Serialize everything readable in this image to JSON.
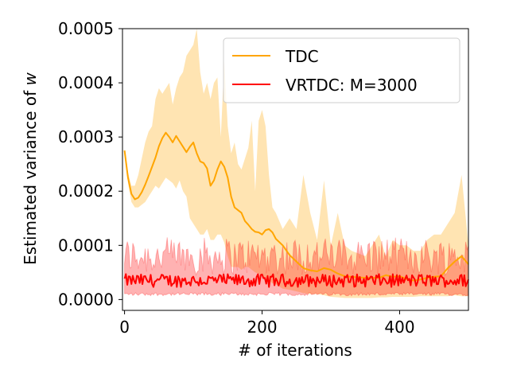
{
  "chart_data": {
    "type": "line",
    "title": "",
    "xlabel": "# of iterations",
    "ylabel": "Estimated variance of w",
    "ylabel_main": "Estimated variance of ",
    "ylabel_var": "w",
    "xlim": [
      -3,
      500
    ],
    "ylim": [
      -2e-05,
      0.0005
    ],
    "xticks": [
      0,
      200,
      400
    ],
    "xtick_labels": [
      "0",
      "200",
      "400"
    ],
    "yticks": [
      0.0,
      0.0001,
      0.0002,
      0.0003,
      0.0004,
      0.0005
    ],
    "ytick_labels": [
      "0.0000",
      "0.0001",
      "0.0002",
      "0.0003",
      "0.0004",
      "0.0005"
    ],
    "legend_position": "top-right",
    "series": [
      {
        "name": "TDC",
        "color": "#ffa500",
        "band_color": "#ffa500",
        "x": [
          0,
          5,
          10,
          15,
          20,
          25,
          30,
          35,
          40,
          45,
          50,
          55,
          60,
          65,
          70,
          75,
          80,
          85,
          90,
          95,
          100,
          105,
          110,
          115,
          120,
          125,
          130,
          135,
          140,
          145,
          150,
          155,
          160,
          165,
          170,
          175,
          180,
          185,
          190,
          195,
          200,
          205,
          210,
          215,
          220,
          230,
          240,
          250,
          260,
          270,
          280,
          290,
          300,
          310,
          320,
          330,
          340,
          350,
          360,
          370,
          380,
          390,
          400,
          410,
          420,
          430,
          440,
          450,
          460,
          470,
          480,
          490,
          500
        ],
        "mean": [
          0.000275,
          0.000225,
          0.000195,
          0.000185,
          0.000188,
          0.000198,
          0.000212,
          0.000228,
          0.000245,
          0.000262,
          0.000283,
          0.000298,
          0.000308,
          0.0003,
          0.00029,
          0.000302,
          0.000292,
          0.000282,
          0.000272,
          0.000282,
          0.00029,
          0.00027,
          0.000255,
          0.000252,
          0.000242,
          0.00021,
          0.00022,
          0.00024,
          0.000255,
          0.000245,
          0.000225,
          0.00019,
          0.00017,
          0.000165,
          0.00016,
          0.000145,
          0.000138,
          0.00013,
          0.000125,
          0.000124,
          0.00012,
          0.000128,
          0.00013,
          0.000124,
          0.000112,
          0.0001,
          8.2e-05,
          7e-05,
          5.8e-05,
          5.4e-05,
          5.2e-05,
          5.8e-05,
          5.5e-05,
          4.8e-05,
          4.3e-05,
          4.2e-05,
          4.1e-05,
          4e-05,
          4e-05,
          4e-05,
          4.5e-05,
          4.2e-05,
          4.3e-05,
          3.8e-05,
          3.5e-05,
          3.7e-05,
          4e-05,
          4.2e-05,
          4.3e-05,
          5.8e-05,
          7e-05,
          8e-05,
          6.5e-05
        ],
        "upper": [
          0.000275,
          0.000235,
          0.00021,
          0.00021,
          0.00023,
          0.00026,
          0.00029,
          0.00031,
          0.00032,
          0.00037,
          0.00039,
          0.00038,
          0.00039,
          0.0004,
          0.00036,
          0.00039,
          0.00041,
          0.00042,
          0.00045,
          0.00046,
          0.00047,
          0.0005,
          0.00042,
          0.00038,
          0.0004,
          0.00037,
          0.0004,
          0.00041,
          0.0003,
          0.00044,
          0.00032,
          0.00027,
          0.00029,
          0.00025,
          0.00024,
          0.00026,
          0.00028,
          0.00033,
          0.0002,
          0.00033,
          0.00035,
          0.00032,
          0.00023,
          0.00017,
          0.00016,
          0.00013,
          0.00015,
          0.00013,
          0.00023,
          0.00016,
          0.00011,
          0.00022,
          0.0001,
          0.00016,
          0.0001,
          9e-05,
          8.5e-05,
          8e-05,
          0.0001,
          0.00012,
          8e-05,
          0.00011,
          0.0001,
          0.0001,
          9e-05,
          9e-05,
          0.00011,
          0.00012,
          0.00012,
          0.00014,
          0.00016,
          0.00023,
          0.0001
        ],
        "lower": [
          0.000275,
          0.000215,
          0.00018,
          0.00017,
          0.00017,
          0.000175,
          0.00018,
          0.00019,
          0.0002,
          0.00021,
          0.000205,
          0.000215,
          0.000225,
          0.00022,
          0.000215,
          0.000205,
          0.00022,
          0.0002,
          0.00019,
          0.00015,
          0.00014,
          0.00013,
          0.00012,
          0.00012,
          0.00013,
          0.00011,
          0.00011,
          0.00012,
          0.00012,
          0.000105,
          8e-05,
          6e-05,
          6e-05,
          6e-05,
          5.5e-05,
          6e-05,
          6e-05,
          5.5e-05,
          5e-05,
          4.8e-05,
          4.5e-05,
          4e-05,
          3.5e-05,
          3e-05,
          2.8e-05,
          2e-05,
          1.8e-05,
          1.5e-05,
          1.2e-05,
          1e-05,
          1e-05,
          8e-06,
          5e-06,
          4e-06,
          3e-06,
          3e-06,
          3e-06,
          3e-06,
          3e-06,
          4e-06,
          4e-06,
          5e-06,
          5e-06,
          5e-06,
          5e-06,
          6e-06,
          6e-06,
          6e-06,
          6e-06,
          6e-06,
          8e-06,
          6e-06,
          6e-06
        ]
      },
      {
        "name": "VRTDC: M=3000",
        "color": "#ff0000",
        "band_color": "#ff0000",
        "noise": true,
        "mean_level": 3.5e-05,
        "mean_jitter": 1.2e-05,
        "upper_level": 8e-05,
        "upper_jitter": 3.5e-05,
        "lower_level": 1e-05,
        "lower_jitter": 3e-06
      }
    ]
  }
}
